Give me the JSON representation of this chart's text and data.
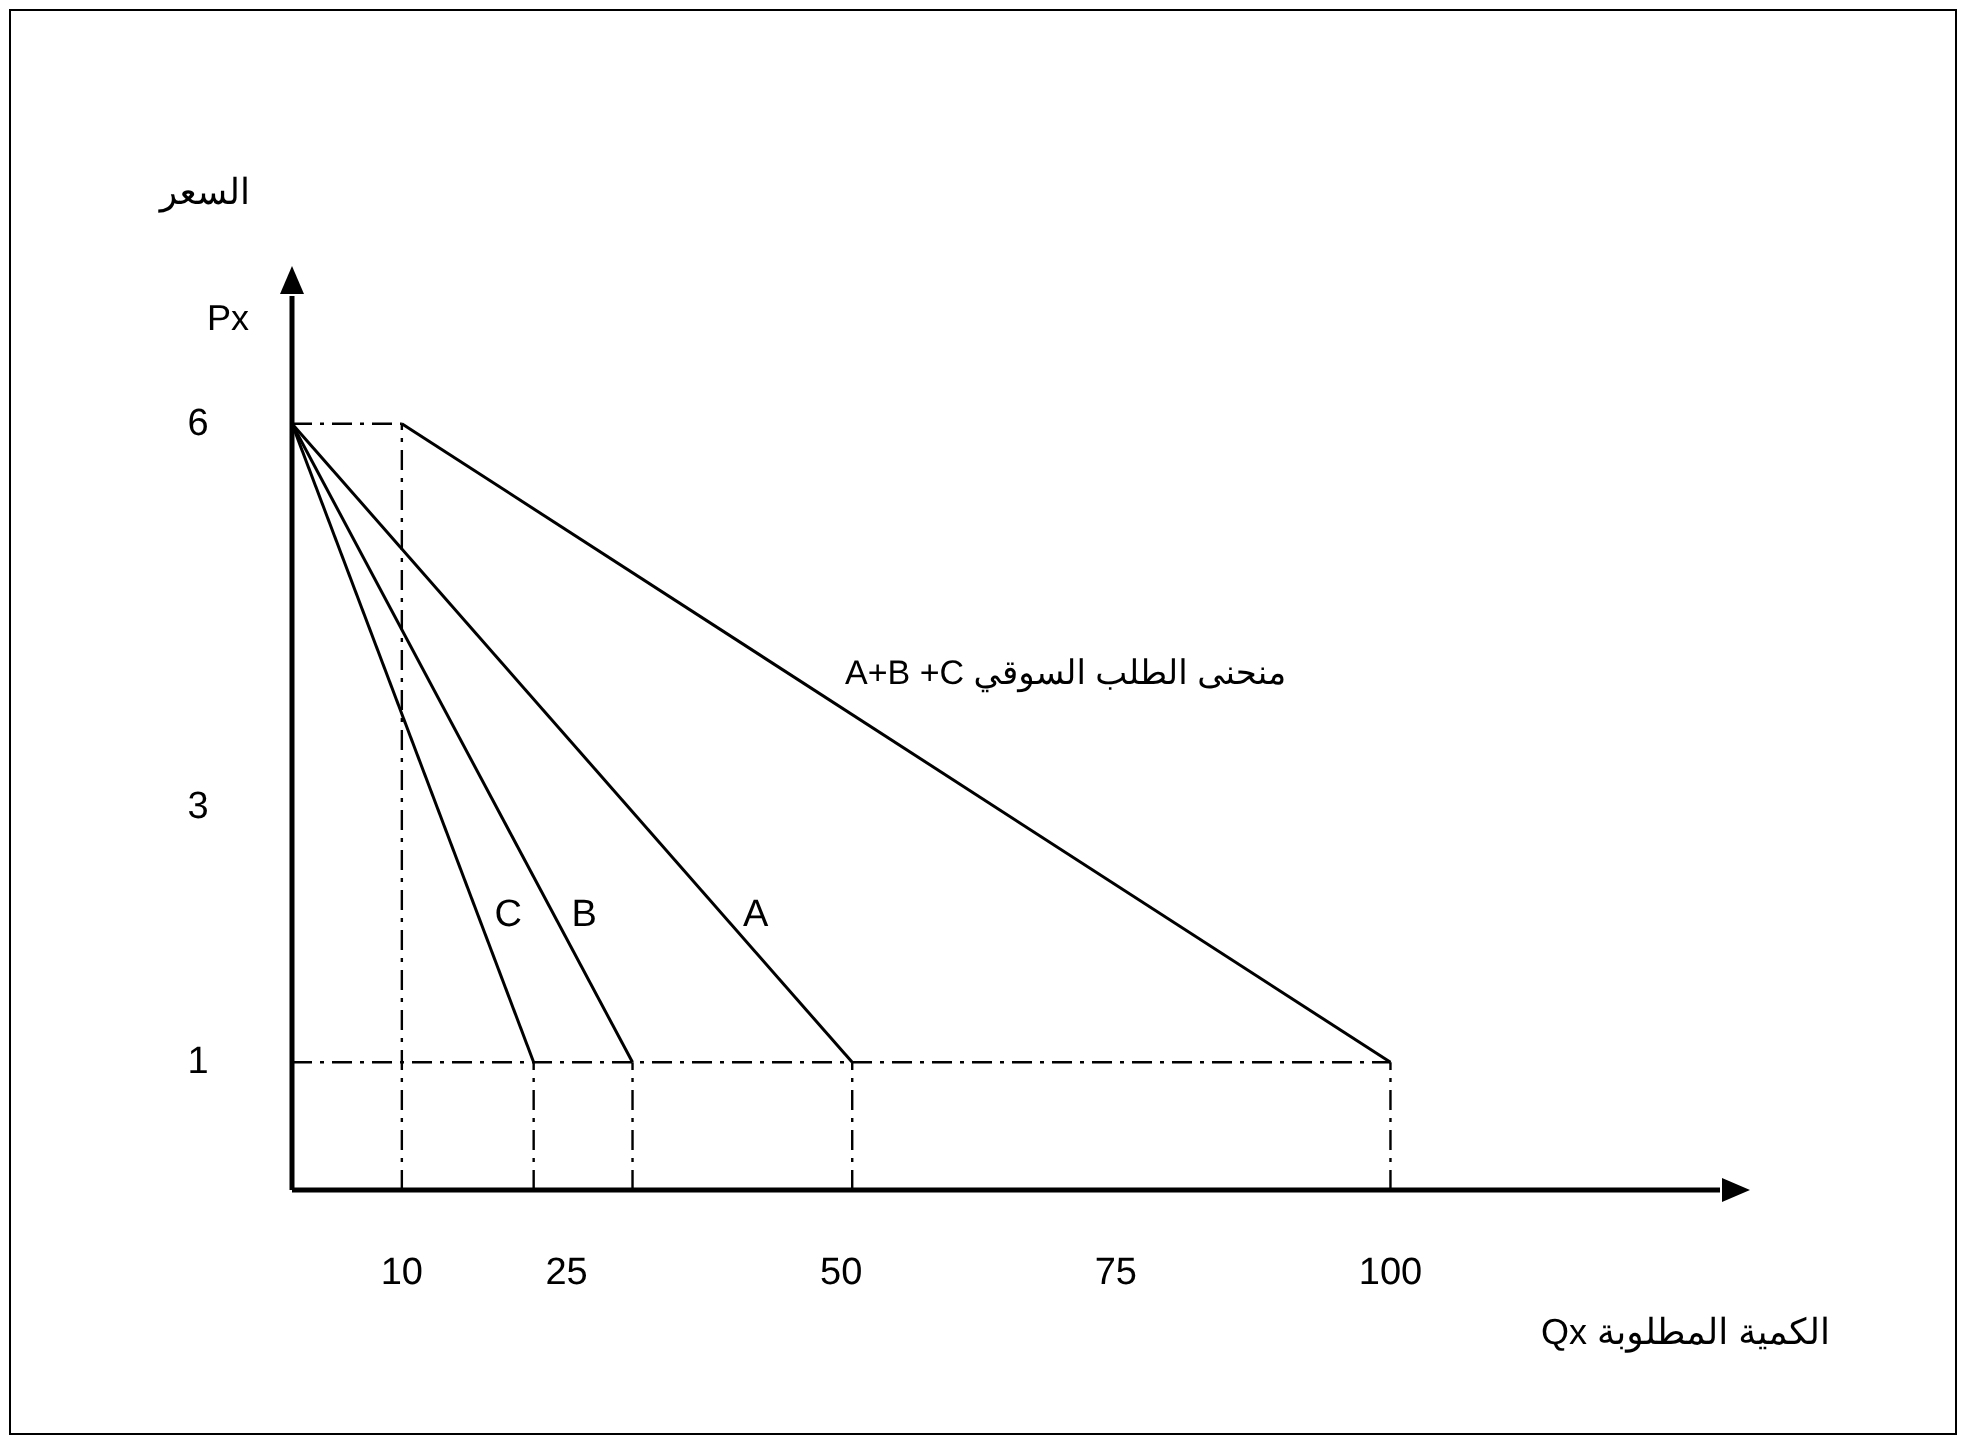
{
  "chart_data": {
    "type": "line",
    "xlabel": "الكمية المطلوبة Qx",
    "ylabel": "السعر",
    "annotations": [
      "Px"
    ],
    "xlim": [
      0,
      130
    ],
    "ylim": [
      0,
      7
    ],
    "xticks": [
      10,
      25,
      50,
      75,
      100
    ],
    "yticks": [
      1,
      3,
      6
    ],
    "grid": false,
    "legend": false,
    "marker": "none",
    "series": [
      {
        "name": "C",
        "color": "#000000",
        "x": [
          0,
          22
        ],
        "values": [
          6,
          1
        ]
      },
      {
        "name": "B",
        "color": "#000000",
        "x": [
          0,
          31
        ],
        "values": [
          6,
          1
        ]
      },
      {
        "name": "A",
        "color": "#000000",
        "x": [
          0,
          51
        ],
        "values": [
          6,
          1
        ]
      },
      {
        "name": "منحنى الطلب السوقي A+B +C",
        "color": "#000000",
        "x": [
          10,
          100
        ],
        "values": [
          6,
          1
        ]
      },
      {
        "color": "#000000",
        "line_style": "dashed",
        "x": [
          0,
          100
        ],
        "values": [
          1,
          1
        ]
      },
      {
        "color": "#000000",
        "line_style": "dashed",
        "x": [
          0,
          10
        ],
        "values": [
          6,
          6
        ]
      },
      {
        "color": "#000000",
        "line_style": "dashed",
        "x": [
          10,
          10
        ],
        "values": [
          0,
          6
        ]
      },
      {
        "color": "#000000",
        "line_style": "dashed",
        "x": [
          22,
          22
        ],
        "values": [
          0,
          1
        ]
      },
      {
        "color": "#000000",
        "line_style": "dashed",
        "x": [
          31,
          31
        ],
        "values": [
          0,
          1
        ]
      },
      {
        "color": "#000000",
        "line_style": "dashed",
        "x": [
          51,
          51
        ],
        "values": [
          0,
          1
        ]
      },
      {
        "color": "#000000",
        "line_style": "dashed",
        "x": [
          100,
          100
        ],
        "values": [
          0,
          1
        ]
      }
    ]
  }
}
